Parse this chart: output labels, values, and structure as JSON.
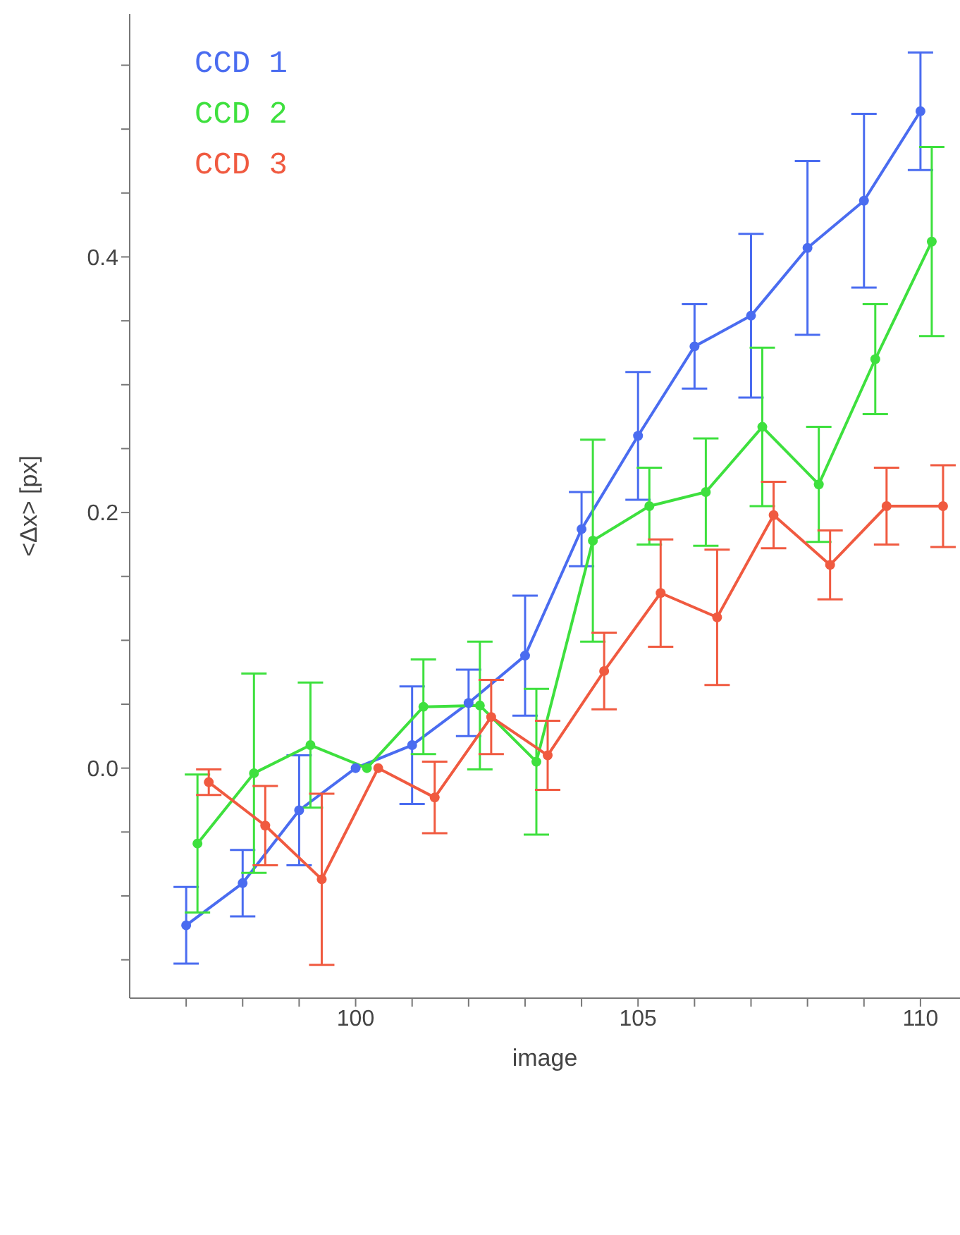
{
  "chart_data": {
    "type": "line",
    "xlabel": "image",
    "ylabel": "<Δx> [px]",
    "xlim": [
      96,
      110.7
    ],
    "ylim": [
      -0.18,
      0.59
    ],
    "xticks": [
      {
        "value": 97,
        "label": null
      },
      {
        "value": 98,
        "label": null
      },
      {
        "value": 99,
        "label": null
      },
      100,
      {
        "value": 101,
        "label": null
      },
      {
        "value": 102,
        "label": null
      },
      {
        "value": 103,
        "label": null
      },
      {
        "value": 104,
        "label": null
      },
      105,
      {
        "value": 106,
        "label": null
      },
      {
        "value": 107,
        "label": null
      },
      {
        "value": 108,
        "label": null
      },
      {
        "value": 109,
        "label": null
      },
      110
    ],
    "yticks": [
      {
        "value": -0.15,
        "label": null
      },
      {
        "value": -0.1,
        "label": null
      },
      {
        "value": -0.05,
        "label": null
      },
      {
        "value": 0,
        "label": "0.0"
      },
      {
        "value": 0.05,
        "label": null
      },
      {
        "value": 0.1,
        "label": null
      },
      {
        "value": 0.15,
        "label": null
      },
      {
        "value": 0.2,
        "label": "0.2"
      },
      {
        "value": 0.25,
        "label": null
      },
      {
        "value": 0.3,
        "label": null
      },
      {
        "value": 0.35,
        "label": null
      },
      {
        "value": 0.4,
        "label": "0.4"
      },
      {
        "value": 0.45,
        "label": null
      },
      {
        "value": 0.5,
        "label": null
      },
      {
        "value": 0.55,
        "label": null
      }
    ],
    "legend": "top left",
    "marker": "circle",
    "line_style": "solid",
    "grid": false,
    "series": [
      {
        "name": "CCD 1",
        "color": "#4a6cf0",
        "x": [
          97,
          98,
          99,
          100,
          101,
          102,
          103,
          104,
          105,
          106,
          107,
          108,
          109,
          110
        ],
        "values": [
          -0.123,
          -0.09,
          -0.033,
          0,
          0.018,
          0.051,
          0.088,
          0.187,
          0.26,
          0.33,
          0.354,
          0.407,
          0.444,
          0.514
        ],
        "errors": [
          0.03,
          0.026,
          0.043,
          null,
          0.046,
          0.026,
          0.047,
          0.029,
          0.05,
          0.033,
          0.064,
          0.068,
          0.068,
          0.046
        ]
      },
      {
        "name": "CCD 2",
        "color": "#3ee03e",
        "x": [
          97.2,
          98.2,
          99.2,
          100.2,
          101.2,
          102.2,
          103.2,
          104.2,
          105.2,
          106.2,
          107.2,
          108.2,
          109.2,
          110.2
        ],
        "values": [
          -0.059,
          -0.004,
          0.018,
          0,
          0.048,
          0.049,
          0.005,
          0.178,
          0.205,
          0.216,
          0.267,
          0.222,
          0.32,
          0.412
        ],
        "errors": [
          0.054,
          0.078,
          0.049,
          null,
          0.037,
          0.05,
          0.057,
          0.079,
          0.03,
          0.042,
          0.062,
          0.045,
          0.043,
          0.074
        ]
      },
      {
        "name": "CCD 3",
        "color": "#f05a40",
        "x": [
          97.4,
          98.4,
          99.4,
          100.4,
          101.4,
          102.4,
          103.4,
          104.4,
          105.4,
          106.4,
          107.4,
          108.4,
          109.4,
          110.4
        ],
        "values": [
          -0.011,
          -0.045,
          -0.087,
          0,
          -0.023,
          0.04,
          0.01,
          0.076,
          0.137,
          0.118,
          0.198,
          0.159,
          0.205,
          0.205
        ],
        "errors": [
          0.01,
          0.031,
          0.067,
          null,
          0.028,
          0.029,
          0.027,
          0.03,
          0.042,
          0.053,
          0.026,
          0.027,
          0.03,
          0.032
        ]
      }
    ]
  }
}
